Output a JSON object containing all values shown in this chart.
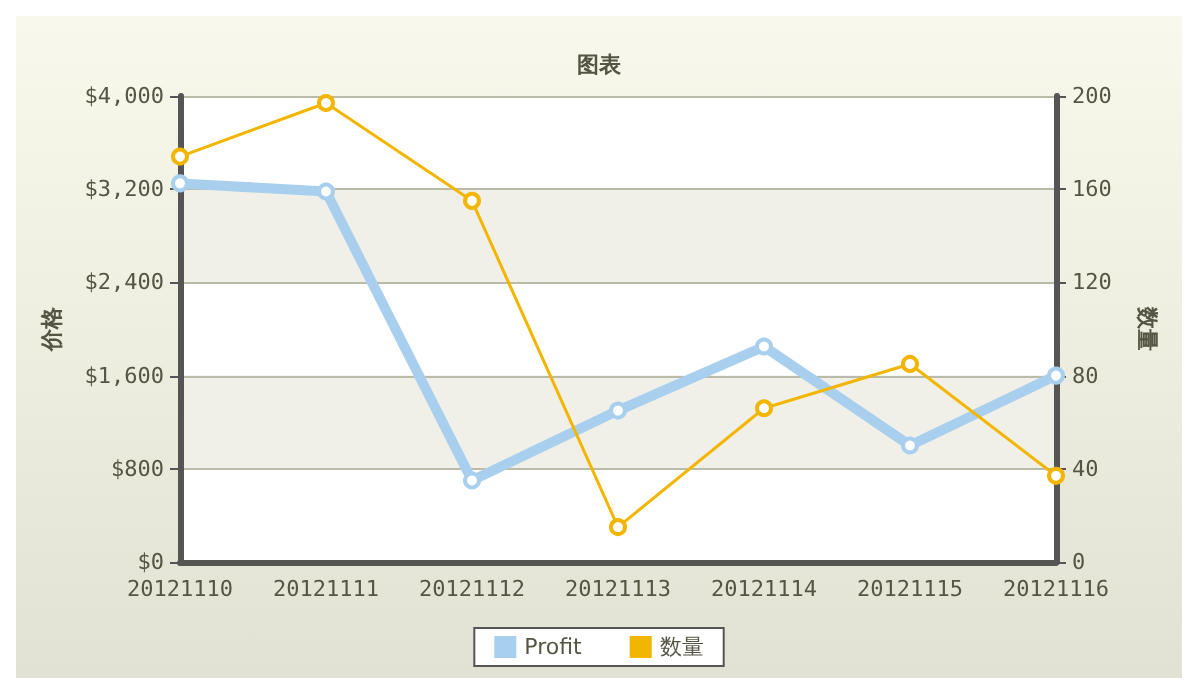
{
  "chart_data": {
    "type": "line",
    "title": "图表",
    "ylabel": "价格",
    "y2label": "数量",
    "categories": [
      "20121110",
      "20121111",
      "20121112",
      "20121113",
      "20121114",
      "20121115",
      "20121116"
    ],
    "series": [
      {
        "name": "Profit",
        "color": "#a8d0ee",
        "values": [
          3250,
          3180,
          700,
          1300,
          1850,
          1000,
          1600
        ]
      },
      {
        "name": "数量",
        "color": "#f2b600",
        "axis": "y2",
        "values": [
          174,
          197,
          155,
          15,
          66,
          85,
          37
        ]
      }
    ],
    "ylim": [
      0,
      4000
    ],
    "yticks": [
      {
        "value": 0,
        "label": "$0"
      },
      {
        "value": 800,
        "label": "$800"
      },
      {
        "value": 1600,
        "label": "$1,600"
      },
      {
        "value": 2400,
        "label": "$2,400"
      },
      {
        "value": 3200,
        "label": "$3,200"
      },
      {
        "value": 4000,
        "label": "$4,000"
      }
    ],
    "y2lim": [
      0,
      200
    ],
    "y2ticks": [
      0,
      40,
      80,
      120,
      160,
      200
    ],
    "grid": "y",
    "legend": "bottom",
    "marker": "circle",
    "line_style": "solid"
  }
}
